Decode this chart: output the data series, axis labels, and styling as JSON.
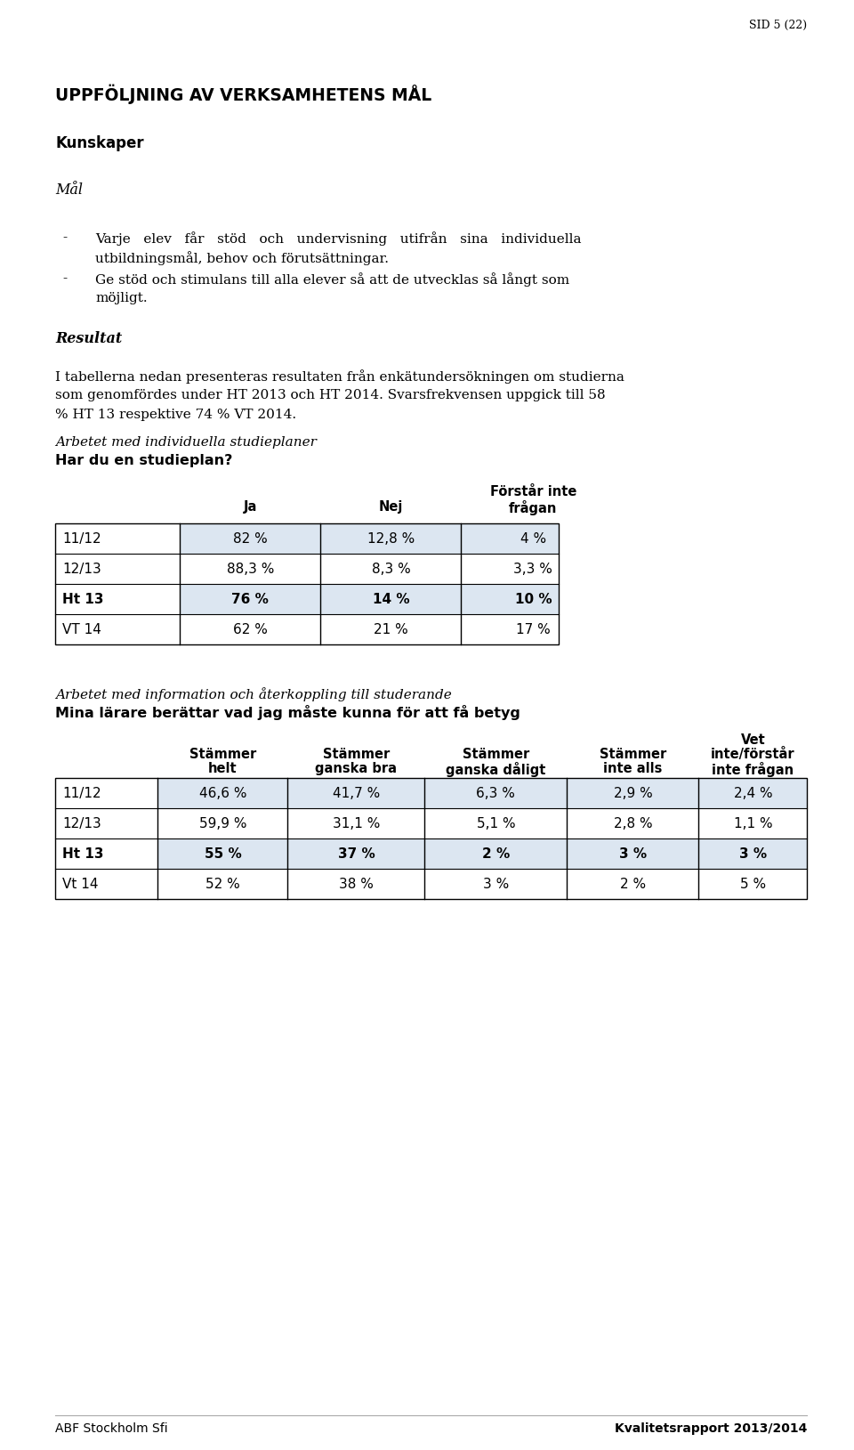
{
  "page_label": "SID 5 (22)",
  "main_title": "UPPFÖLJNING AV VERKSAMHETENS MÅL",
  "section_title": "Kunskaper",
  "subsection_italic": "Mål",
  "bullet1_line1": "Varje   elev   får   stöd   och   undervisning   utifrån   sina   individuella",
  "bullet1_line2": "utbildningsmål, behov och förutsättningar.",
  "bullet2_line1": "Ge stöd och stimulans till alla elever så att de utvecklas så långt som",
  "bullet2_line2": "möjligt.",
  "resultat_label": "Resultat",
  "resultat_text1": "I tabellerna nedan presenteras resultaten från enkätundersökningen om studierna",
  "resultat_text2": "som genomfördes under HT 2013 och HT 2014. Svarsfrekvensen uppgick till 58",
  "resultat_text3": "% HT 13 respektive 74 % VT 2014.",
  "table1_italic": "Arbetet med individuella studieplaner",
  "table1_bold": "Har du en studieplan?",
  "table1_rows": [
    {
      "label": "11/12",
      "vals": [
        "82 %",
        "12,8 %",
        "4 %"
      ],
      "bold": false,
      "shaded": true
    },
    {
      "label": "12/13",
      "vals": [
        "88,3 %",
        "8,3 %",
        "3,3 %"
      ],
      "bold": false,
      "shaded": false
    },
    {
      "label": "Ht 13",
      "vals": [
        "76 %",
        "14 %",
        "10 %"
      ],
      "bold": true,
      "shaded": true
    },
    {
      "label": "VT 14",
      "vals": [
        "62 %",
        "21 %",
        "17 %"
      ],
      "bold": false,
      "shaded": false
    }
  ],
  "table2_italic": "Arbetet med information och återkoppling till studerande",
  "table2_bold": "Mina lärare berättar vad jag måste kunna för att få betyg",
  "table2_rows": [
    {
      "label": "11/12",
      "vals": [
        "46,6 %",
        "41,7 %",
        "6,3 %",
        "2,9 %",
        "2,4 %"
      ],
      "bold": false,
      "shaded": true
    },
    {
      "label": "12/13",
      "vals": [
        "59,9 %",
        "31,1 %",
        "5,1 %",
        "2,8 %",
        "1,1 %"
      ],
      "bold": false,
      "shaded": false
    },
    {
      "label": "Ht 13",
      "vals": [
        "55 %",
        "37 %",
        "2 %",
        "3 %",
        "3 %"
      ],
      "bold": true,
      "shaded": true
    },
    {
      "label": "Vt 14",
      "vals": [
        "52 %",
        "38 %",
        "3 %",
        "2 %",
        "5 %"
      ],
      "bold": false,
      "shaded": false
    }
  ],
  "footer_left": "ABF Stockholm Sfi",
  "footer_right": "Kvalitetsrapport 2013/2014",
  "bg_color": "#ffffff",
  "shaded_color": "#dce6f1",
  "border_color": "#000000",
  "text_color": "#000000",
  "lm": 0.065,
  "rm": 0.945
}
